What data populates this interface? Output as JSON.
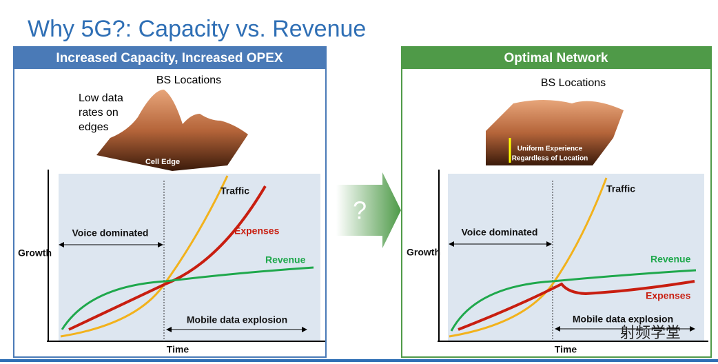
{
  "title": "Why 5G?: Capacity vs. Revenue",
  "left_panel": {
    "header": "Increased Capacity, Increased OPEX",
    "map_label": "BS Locations",
    "note": [
      "Low data",
      "rates on",
      "edges"
    ],
    "map_caption": "Cell Edge",
    "traffic": "Traffic",
    "expenses": "Expenses",
    "revenue": "Revenue",
    "voice": "Voice dominated",
    "y_axis": "Growth",
    "explosion": "Mobile data explosion",
    "x_axis": "Time"
  },
  "transition": "?",
  "right_panel": {
    "header": "Optimal Network",
    "map_label": "BS Locations",
    "map_caption": [
      "Uniform Experience",
      "Regardless of Location"
    ],
    "traffic": "Traffic",
    "expenses": "Expenses",
    "revenue": "Revenue",
    "voice": "Voice dominated",
    "y_axis": "Growth",
    "explosion": "Mobile data explosion",
    "x_axis": "Time"
  },
  "watermark": "射频学堂"
}
